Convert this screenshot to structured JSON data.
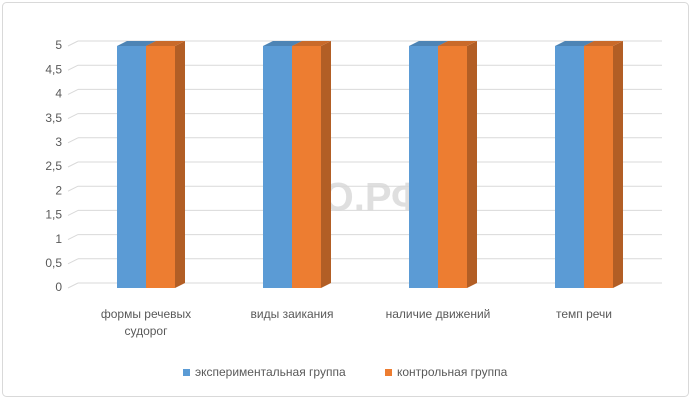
{
  "chart_data": {
    "type": "bar3d",
    "watermark": "ДЦО.РФ",
    "categories": [
      "формы речевых судорог",
      "виды заикания",
      "наличие движений",
      "темп речи"
    ],
    "series": [
      {
        "name": "экспериментальная группа",
        "color": "#5b9bd5",
        "values": [
          5,
          5,
          5,
          5
        ]
      },
      {
        "name": "контрольная группа",
        "color": "#ed7d31",
        "values": [
          5,
          5,
          5,
          5
        ]
      }
    ],
    "ylim": [
      0,
      5
    ],
    "yticks": [
      0,
      {
        "value": 0.5,
        "label": "0,5"
      },
      1,
      {
        "value": 1.5,
        "label": "1,5"
      },
      2,
      {
        "value": 2.5,
        "label": "2,5"
      },
      3,
      {
        "value": 3.5,
        "label": "3,5"
      },
      4,
      {
        "value": 4.5,
        "label": "4,5"
      },
      5
    ],
    "grid": true,
    "legend": "bottom"
  }
}
